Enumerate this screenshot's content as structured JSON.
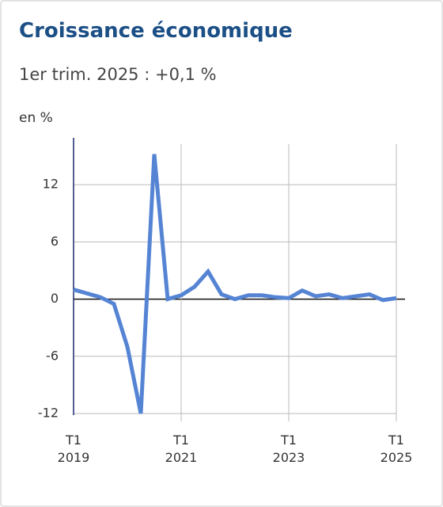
{
  "chart_data": {
    "type": "line",
    "title": "Croissance économique",
    "subtitle": "1er trim. 2025 : +0,1 %",
    "y_axis_label": "en %",
    "categories": [
      "T1\n2019",
      null,
      null,
      null,
      null,
      null,
      null,
      null,
      "T1\n2021",
      null,
      null,
      null,
      null,
      null,
      null,
      null,
      "T1\n2023",
      null,
      null,
      null,
      null,
      null,
      null,
      null,
      "T1\n2025"
    ],
    "series": [
      {
        "name": "Croissance",
        "color": "#5584d4",
        "values": [
          1.0,
          0.6,
          0.2,
          -0.5,
          -5.0,
          -12.0,
          15.2,
          0.0,
          0.4,
          1.3,
          2.9,
          0.5,
          0.0,
          0.4,
          0.4,
          0.2,
          0.1,
          0.9,
          0.3,
          0.5,
          0.1,
          0.3,
          0.5,
          -0.1,
          0.1
        ]
      }
    ],
    "ylim": [
      -12,
      16.5
    ],
    "yticks": [
      -12,
      -6,
      0,
      6,
      12
    ],
    "grid": true
  }
}
